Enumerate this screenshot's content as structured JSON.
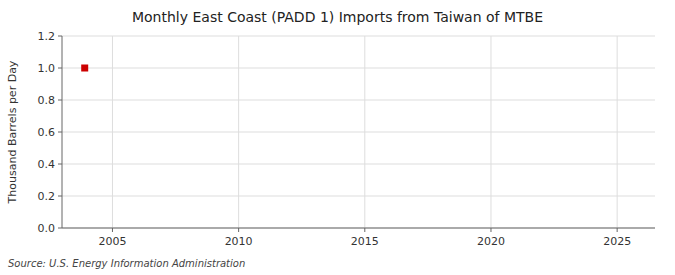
{
  "chart_data": {
    "type": "scatter",
    "title": "Monthly East Coast (PADD 1) Imports from Taiwan of MTBE",
    "ylabel": "Thousand Barrels per Day",
    "source": "Source: U.S. Energy Information Administration",
    "x": [
      2003.9
    ],
    "values": [
      1.0
    ],
    "color": "#cc0000",
    "marker": "square",
    "xlim": [
      2003.0,
      2026.5
    ],
    "xticks": [
      2005,
      2010,
      2015,
      2020,
      2025
    ],
    "ylim": [
      0.0,
      1.2
    ],
    "yticks": [
      {
        "value": 0.0,
        "label": "0.0"
      },
      0.2,
      0.4,
      0.6,
      0.8,
      {
        "value": 1.0,
        "label": "1.0"
      },
      1.2
    ],
    "grid": true
  }
}
